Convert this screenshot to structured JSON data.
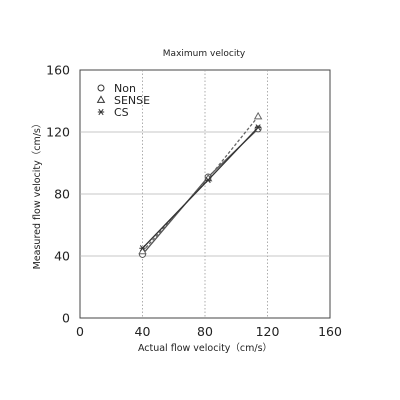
{
  "chart_data": {
    "type": "line",
    "title": "Maximum velocity",
    "xlabel": "Actual flow velocity（cm/s）",
    "ylabel": "Measured flow velocity（cm/s）",
    "xlim": [
      0,
      160
    ],
    "ylim": [
      0,
      160
    ],
    "xticks": [
      0,
      40,
      80,
      120,
      160
    ],
    "yticks": [
      0,
      40,
      80,
      120,
      160
    ],
    "grid": "dotted",
    "legend_position": "top-left",
    "series": [
      {
        "name": "Non",
        "marker": "circle",
        "line": "solid",
        "color": "#555555",
        "x": [
          40,
          82,
          114
        ],
        "y": [
          41,
          91,
          122
        ]
      },
      {
        "name": "SENSE",
        "marker": "triangle",
        "line": "dashed",
        "color": "#666666",
        "x": [
          40,
          82,
          114
        ],
        "y": [
          43,
          90,
          130
        ]
      },
      {
        "name": "CS",
        "marker": "asterisk",
        "line": "solid",
        "color": "#333333",
        "x": [
          40,
          82,
          114
        ],
        "y": [
          45,
          89,
          123
        ]
      }
    ]
  }
}
